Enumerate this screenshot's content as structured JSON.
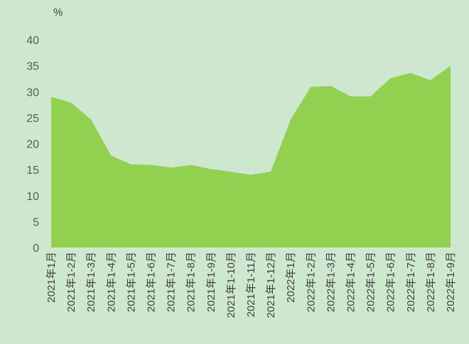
{
  "chart_data": {
    "type": "area",
    "unit_label": "%",
    "ylim": [
      0,
      40
    ],
    "y_ticks": [
      0,
      5,
      10,
      15,
      20,
      25,
      30,
      35,
      40
    ],
    "grid": true,
    "legend": "none",
    "colors": {
      "background": "#cde8cf",
      "area": "#92d050",
      "grid": "#d9d9d9"
    },
    "categories": [
      "2021年1月",
      "2021年1-2月",
      "2021年1-3月",
      "2021年1-4月",
      "2021年1-5月",
      "2021年1-6月",
      "2021年1-7月",
      "2021年1-8月",
      "2021年1-9月",
      "2021年1-10月",
      "2021年1-11月",
      "2021年1-12月",
      "2022年1月",
      "2022年1-2月",
      "2022年1-3月",
      "2022年1-4月",
      "2022年1-5月",
      "2022年1-6月",
      "2022年1-7月",
      "2022年1-8月",
      "2022年1-9月"
    ],
    "series": [
      {
        "values": [
          29.0,
          27.9,
          24.6,
          17.7,
          16.0,
          15.9,
          15.4,
          15.9,
          15.1,
          14.6,
          14.0,
          14.6,
          24.7,
          30.9,
          31.1,
          29.1,
          29.1,
          32.6,
          33.6,
          32.2,
          35.0
        ]
      }
    ]
  }
}
